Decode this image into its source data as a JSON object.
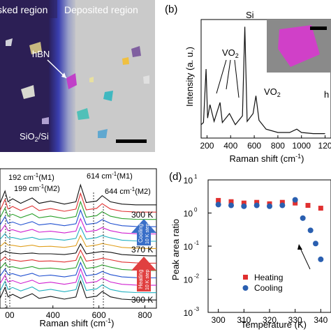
{
  "figure": {
    "panel_a": {
      "left_label": "sked region",
      "right_label": "Deposited region",
      "flake_label": "hBN",
      "substrate_label": "SiO",
      "substrate_sub": "2",
      "substrate_suffix": "/Si"
    },
    "panel_b": {
      "letter": "(b)",
      "si_label": "Si",
      "vo2_label_1": "VO",
      "vo2_sub_1": "2",
      "vo2_label_2": "VO",
      "vo2_sub_2": "2",
      "inset_partial": "h",
      "ylabel": "Intensity (a. u.)",
      "xlabel": "Raman shift (cm",
      "xlabel_sup": "-1",
      "xlabel_end": ")",
      "xticks": [
        "200",
        "400",
        "600",
        "800",
        "1000",
        "120"
      ]
    },
    "panel_c": {
      "peak_192": "192 cm",
      "peak_192_tail": "(M1)",
      "peak_199": "199 cm",
      "peak_199_tail": "(M2)",
      "peak_614": "614 cm",
      "peak_614_tail": "(M1)",
      "peak_644": "644 cm",
      "peak_644_tail": "(M2)",
      "sup": "-1",
      "temp_top": "300 K",
      "temp_mid": "370 K",
      "temp_bottom": "300 K",
      "cooling_text": "Cooling",
      "cooling_step": "10 K step",
      "heating_text": "Heating",
      "heating_step": "10 K step",
      "xlabel": "Raman shift (cm",
      "xlabel_sup": "-1",
      "xlabel_end": ")",
      "xticks": [
        "00",
        "400",
        "600",
        "800"
      ]
    },
    "panel_d": {
      "letter": "(d)",
      "ylabel": "Peak area ratio",
      "xlabel": "Temperature (K)",
      "yticks": [
        "10",
        "10",
        "10",
        "10",
        "10"
      ],
      "ytick_exps": [
        "1",
        "0",
        "-1",
        "-2",
        "-3"
      ],
      "xticks": [
        "300",
        "310",
        "320",
        "330",
        "340"
      ],
      "legend_heating": "Heating",
      "legend_cooling": "Cooling"
    }
  },
  "colors": {
    "heating": "#e03030",
    "cooling": "#2a5fb0",
    "cooling_arrow": "#3a6fc8",
    "heating_arrow": "#e04040"
  },
  "chart_data": [
    {
      "type": "line",
      "panel": "b",
      "xlabel": "Raman shift (cm-1)",
      "ylabel": "Intensity (a. u.)",
      "xlim": [
        150,
        1250
      ],
      "x": [
        150,
        170,
        192,
        205,
        225,
        260,
        310,
        330,
        390,
        440,
        500,
        520,
        540,
        590,
        614,
        640,
        700,
        800,
        900,
        960,
        1000,
        1100,
        1200
      ],
      "y": [
        0.12,
        0.14,
        0.62,
        0.18,
        0.3,
        0.15,
        0.32,
        0.14,
        0.22,
        0.12,
        0.2,
        1.0,
        0.15,
        0.22,
        0.38,
        0.16,
        0.08,
        0.05,
        0.05,
        0.08,
        0.05,
        0.04,
        0.04
      ]
    },
    {
      "type": "line",
      "panel": "c",
      "xlabel": "Raman shift (cm-1)",
      "xlim": [
        170,
        850
      ],
      "x": [
        170,
        192,
        205,
        225,
        260,
        310,
        340,
        390,
        450,
        500,
        520,
        545,
        590,
        614,
        650,
        700,
        760,
        820,
        850
      ],
      "series": [
        {
          "name": "300 K",
          "values": [
            0.2,
            1.0,
            0.3,
            0.5,
            0.2,
            0.55,
            0.2,
            0.35,
            0.15,
            0.3,
            1.4,
            0.25,
            0.35,
            0.7,
            0.3,
            0.15,
            0.1,
            0.1,
            0.1
          ]
        },
        {
          "name": "370 K",
          "values": [
            0.25,
            0.45,
            0.35,
            0.3,
            0.25,
            0.3,
            0.25,
            0.25,
            0.2,
            0.3,
            0.9,
            0.25,
            0.35,
            0.4,
            0.35,
            0.2,
            0.15,
            0.12,
            0.12
          ]
        }
      ]
    },
    {
      "type": "scatter",
      "panel": "d",
      "xlabel": "Temperature (K)",
      "ylabel": "Peak area ratio",
      "ylog": true,
      "xlim": [
        296,
        344
      ],
      "ylim": [
        0.001,
        10
      ],
      "series": [
        {
          "name": "Heating",
          "x": [
            300,
            305,
            310,
            315,
            320,
            325,
            330,
            335,
            340
          ],
          "y": [
            2.4,
            2.2,
            2.0,
            2.1,
            1.9,
            2.1,
            2.0,
            1.7,
            1.4
          ]
        },
        {
          "name": "Cooling",
          "x": [
            300,
            305,
            310,
            315,
            320,
            325,
            330,
            333,
            336,
            338,
            340
          ],
          "y": [
            1.8,
            1.7,
            1.6,
            1.7,
            1.6,
            1.7,
            2.5,
            0.7,
            0.3,
            0.12,
            0.04
          ]
        }
      ]
    }
  ]
}
